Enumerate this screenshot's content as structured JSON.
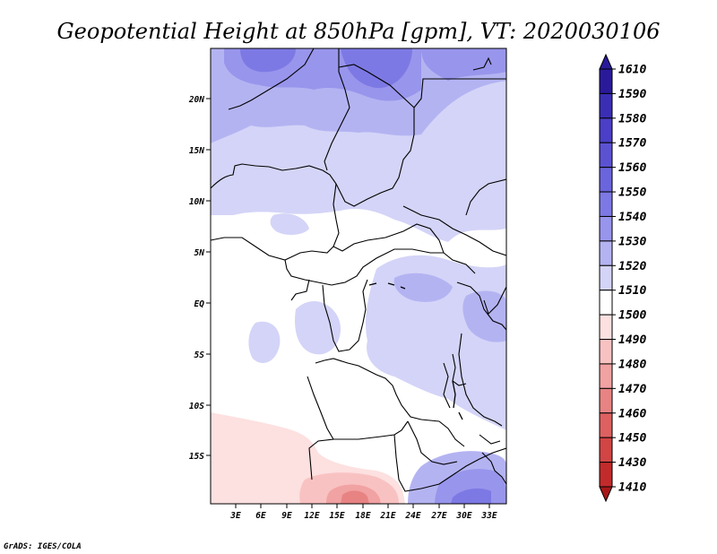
{
  "title": "Geopotential Height at 850hPa [gpm], VT: 2020030106",
  "credit": "GrADS: IGES/COLA",
  "map": {
    "region": "Central and Southern Africa",
    "lat_ticks": [
      "20N",
      "15N",
      "10N",
      "5N",
      "EQ",
      "5S",
      "10S",
      "15S"
    ],
    "lon_ticks": [
      "3E",
      "6E",
      "9E",
      "12E",
      "15E",
      "18E",
      "21E",
      "24E",
      "27E",
      "30E",
      "33E"
    ]
  },
  "colorbar": {
    "levels": [
      "1610",
      "1590",
      "1580",
      "1570",
      "1560",
      "1550",
      "1540",
      "1530",
      "1520",
      "1510",
      "1500",
      "1490",
      "1480",
      "1470",
      "1460",
      "1450",
      "1430",
      "1410"
    ],
    "colors": [
      "#2a1a9a",
      "#3a2eb4",
      "#4a3fc6",
      "#5b52d2",
      "#6a65dc",
      "#7d79e4",
      "#9895ec",
      "#b4b3f2",
      "#d4d4f8",
      "#ffffff",
      "#fde0e0",
      "#f9c2c2",
      "#f1a2a2",
      "#e88383",
      "#dd6161",
      "#d14545",
      "#c22b2b",
      "#a81818"
    ]
  }
}
